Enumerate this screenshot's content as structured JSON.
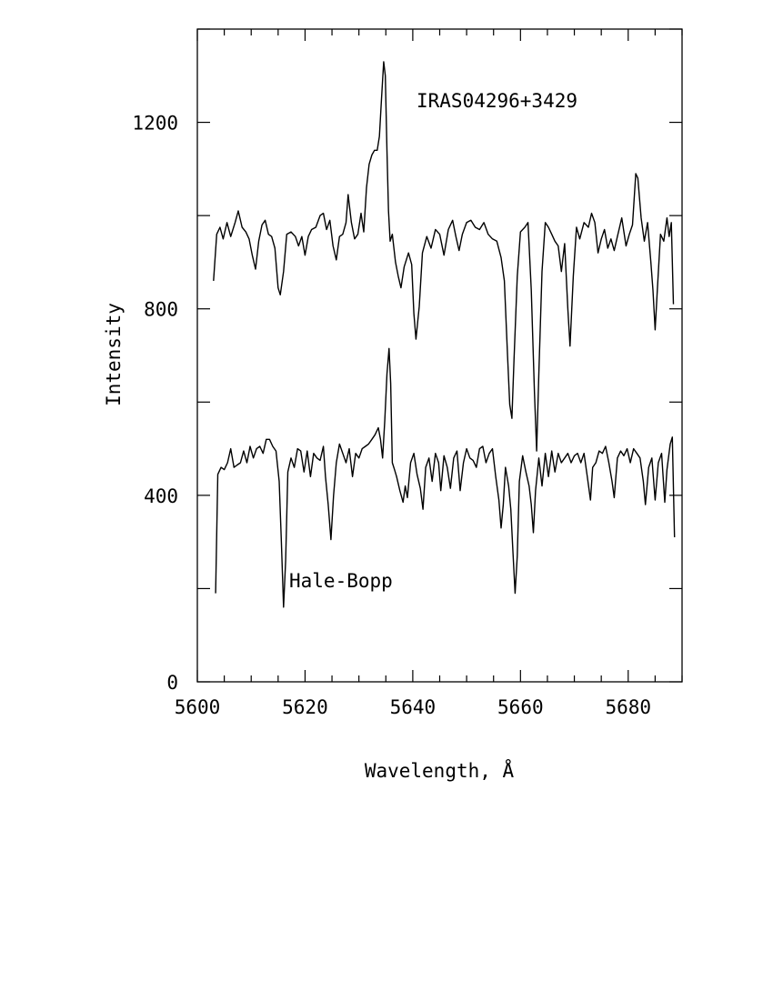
{
  "chart_data": {
    "type": "line",
    "title": "",
    "xlabel": "Wavelength, Å",
    "ylabel": "Intensity",
    "xlim": [
      5600,
      5690
    ],
    "ylim": [
      0,
      1400
    ],
    "x_ticks": [
      5600,
      5620,
      5640,
      5660,
      5680
    ],
    "y_ticks": [
      0,
      400,
      800,
      1200
    ],
    "x_minor_step": 5,
    "y_minor_step": 200,
    "grid": false,
    "legend": "none",
    "line_color": "#000000",
    "annotations": [
      "IRAS04296+3429",
      "Hale-Bopp"
    ],
    "series": [
      {
        "name": "IRAS04296+3429",
        "points": [
          [
            5603.0,
            860
          ],
          [
            5603.6,
            960
          ],
          [
            5604.2,
            975
          ],
          [
            5604.8,
            950
          ],
          [
            5605.5,
            985
          ],
          [
            5606.2,
            955
          ],
          [
            5607.0,
            985
          ],
          [
            5607.6,
            1010
          ],
          [
            5608.3,
            975
          ],
          [
            5609.0,
            965
          ],
          [
            5609.6,
            950
          ],
          [
            5610.2,
            915
          ],
          [
            5610.8,
            885
          ],
          [
            5611.4,
            945
          ],
          [
            5612.0,
            980
          ],
          [
            5612.6,
            990
          ],
          [
            5613.2,
            960
          ],
          [
            5613.8,
            955
          ],
          [
            5614.4,
            930
          ],
          [
            5615.0,
            845
          ],
          [
            5615.4,
            830
          ],
          [
            5616.0,
            880
          ],
          [
            5616.6,
            960
          ],
          [
            5617.4,
            965
          ],
          [
            5618.2,
            955
          ],
          [
            5618.8,
            935
          ],
          [
            5619.4,
            955
          ],
          [
            5620.0,
            915
          ],
          [
            5620.6,
            955
          ],
          [
            5621.2,
            970
          ],
          [
            5622.0,
            975
          ],
          [
            5622.8,
            1000
          ],
          [
            5623.4,
            1005
          ],
          [
            5624.0,
            970
          ],
          [
            5624.6,
            990
          ],
          [
            5625.2,
            935
          ],
          [
            5625.8,
            905
          ],
          [
            5626.4,
            955
          ],
          [
            5627.0,
            960
          ],
          [
            5627.6,
            985
          ],
          [
            5628.0,
            1045
          ],
          [
            5628.6,
            985
          ],
          [
            5629.2,
            950
          ],
          [
            5629.8,
            960
          ],
          [
            5630.4,
            1005
          ],
          [
            5630.9,
            965
          ],
          [
            5631.4,
            1060
          ],
          [
            5631.9,
            1110
          ],
          [
            5632.4,
            1130
          ],
          [
            5632.9,
            1140
          ],
          [
            5633.4,
            1140
          ],
          [
            5633.8,
            1170
          ],
          [
            5634.2,
            1250
          ],
          [
            5634.6,
            1330
          ],
          [
            5634.9,
            1300
          ],
          [
            5635.2,
            1140
          ],
          [
            5635.5,
            1010
          ],
          [
            5635.8,
            945
          ],
          [
            5636.2,
            960
          ],
          [
            5636.8,
            900
          ],
          [
            5637.3,
            870
          ],
          [
            5637.8,
            845
          ],
          [
            5638.4,
            890
          ],
          [
            5639.2,
            920
          ],
          [
            5639.8,
            895
          ],
          [
            5640.2,
            790
          ],
          [
            5640.6,
            735
          ],
          [
            5641.2,
            805
          ],
          [
            5641.8,
            920
          ],
          [
            5642.6,
            955
          ],
          [
            5643.4,
            930
          ],
          [
            5644.2,
            970
          ],
          [
            5645.0,
            960
          ],
          [
            5645.8,
            915
          ],
          [
            5646.6,
            970
          ],
          [
            5647.4,
            990
          ],
          [
            5648.0,
            955
          ],
          [
            5648.6,
            925
          ],
          [
            5649.2,
            960
          ],
          [
            5650.0,
            985
          ],
          [
            5650.8,
            990
          ],
          [
            5651.6,
            975
          ],
          [
            5652.4,
            970
          ],
          [
            5653.2,
            985
          ],
          [
            5654.0,
            960
          ],
          [
            5654.8,
            950
          ],
          [
            5655.6,
            945
          ],
          [
            5656.4,
            910
          ],
          [
            5657.0,
            860
          ],
          [
            5657.6,
            700
          ],
          [
            5658.0,
            595
          ],
          [
            5658.4,
            565
          ],
          [
            5658.8,
            690
          ],
          [
            5659.4,
            870
          ],
          [
            5660.0,
            965
          ],
          [
            5660.8,
            975
          ],
          [
            5661.4,
            985
          ],
          [
            5662.0,
            840
          ],
          [
            5662.6,
            620
          ],
          [
            5663.0,
            495
          ],
          [
            5663.4,
            660
          ],
          [
            5664.0,
            880
          ],
          [
            5664.6,
            985
          ],
          [
            5665.2,
            975
          ],
          [
            5665.8,
            960
          ],
          [
            5666.4,
            945
          ],
          [
            5667.0,
            935
          ],
          [
            5667.6,
            880
          ],
          [
            5668.2,
            940
          ],
          [
            5668.8,
            800
          ],
          [
            5669.2,
            720
          ],
          [
            5669.8,
            870
          ],
          [
            5670.4,
            975
          ],
          [
            5671.0,
            950
          ],
          [
            5671.8,
            985
          ],
          [
            5672.6,
            975
          ],
          [
            5673.2,
            1005
          ],
          [
            5673.8,
            985
          ],
          [
            5674.4,
            920
          ],
          [
            5675.0,
            950
          ],
          [
            5675.6,
            970
          ],
          [
            5676.2,
            930
          ],
          [
            5676.8,
            950
          ],
          [
            5677.4,
            925
          ],
          [
            5678.0,
            955
          ],
          [
            5678.8,
            995
          ],
          [
            5679.6,
            935
          ],
          [
            5680.2,
            960
          ],
          [
            5680.8,
            980
          ],
          [
            5681.4,
            1090
          ],
          [
            5681.8,
            1080
          ],
          [
            5682.4,
            995
          ],
          [
            5683.0,
            945
          ],
          [
            5683.6,
            985
          ],
          [
            5684.2,
            900
          ],
          [
            5684.6,
            840
          ],
          [
            5685.0,
            755
          ],
          [
            5685.4,
            840
          ],
          [
            5686.0,
            960
          ],
          [
            5686.6,
            945
          ],
          [
            5687.2,
            995
          ],
          [
            5687.6,
            955
          ],
          [
            5688.0,
            985
          ],
          [
            5688.4,
            810
          ]
        ]
      },
      {
        "name": "Hale-Bopp",
        "points": [
          [
            5603.4,
            190
          ],
          [
            5603.8,
            445
          ],
          [
            5604.4,
            460
          ],
          [
            5605.0,
            455
          ],
          [
            5605.6,
            470
          ],
          [
            5606.2,
            500
          ],
          [
            5606.8,
            460
          ],
          [
            5607.4,
            465
          ],
          [
            5608.0,
            470
          ],
          [
            5608.6,
            495
          ],
          [
            5609.2,
            470
          ],
          [
            5609.8,
            505
          ],
          [
            5610.4,
            480
          ],
          [
            5611.0,
            500
          ],
          [
            5611.6,
            505
          ],
          [
            5612.2,
            490
          ],
          [
            5612.8,
            520
          ],
          [
            5613.4,
            520
          ],
          [
            5614.0,
            505
          ],
          [
            5614.6,
            495
          ],
          [
            5615.2,
            430
          ],
          [
            5615.6,
            300
          ],
          [
            5616.0,
            160
          ],
          [
            5616.4,
            260
          ],
          [
            5616.8,
            450
          ],
          [
            5617.4,
            480
          ],
          [
            5618.0,
            460
          ],
          [
            5618.6,
            500
          ],
          [
            5619.2,
            495
          ],
          [
            5619.8,
            450
          ],
          [
            5620.4,
            495
          ],
          [
            5621.0,
            440
          ],
          [
            5621.6,
            490
          ],
          [
            5622.2,
            480
          ],
          [
            5622.8,
            475
          ],
          [
            5623.4,
            505
          ],
          [
            5623.8,
            440
          ],
          [
            5624.3,
            380
          ],
          [
            5624.8,
            305
          ],
          [
            5625.3,
            400
          ],
          [
            5625.8,
            470
          ],
          [
            5626.4,
            510
          ],
          [
            5627.0,
            490
          ],
          [
            5627.6,
            470
          ],
          [
            5628.2,
            500
          ],
          [
            5628.8,
            440
          ],
          [
            5629.4,
            490
          ],
          [
            5630.0,
            480
          ],
          [
            5630.6,
            500
          ],
          [
            5631.2,
            505
          ],
          [
            5631.8,
            510
          ],
          [
            5632.4,
            520
          ],
          [
            5633.0,
            530
          ],
          [
            5633.6,
            545
          ],
          [
            5634.0,
            520
          ],
          [
            5634.4,
            480
          ],
          [
            5634.8,
            560
          ],
          [
            5635.2,
            660
          ],
          [
            5635.6,
            715
          ],
          [
            5635.9,
            640
          ],
          [
            5636.2,
            470
          ],
          [
            5636.6,
            455
          ],
          [
            5637.0,
            440
          ],
          [
            5637.6,
            410
          ],
          [
            5638.2,
            385
          ],
          [
            5638.6,
            420
          ],
          [
            5639.0,
            395
          ],
          [
            5639.6,
            470
          ],
          [
            5640.2,
            490
          ],
          [
            5640.8,
            445
          ],
          [
            5641.4,
            415
          ],
          [
            5641.9,
            370
          ],
          [
            5642.4,
            460
          ],
          [
            5643.0,
            480
          ],
          [
            5643.6,
            430
          ],
          [
            5644.2,
            490
          ],
          [
            5644.8,
            470
          ],
          [
            5645.2,
            410
          ],
          [
            5645.8,
            485
          ],
          [
            5646.4,
            460
          ],
          [
            5647.0,
            415
          ],
          [
            5647.6,
            480
          ],
          [
            5648.2,
            495
          ],
          [
            5648.8,
            410
          ],
          [
            5649.4,
            470
          ],
          [
            5650.0,
            500
          ],
          [
            5650.6,
            480
          ],
          [
            5651.2,
            475
          ],
          [
            5651.8,
            460
          ],
          [
            5652.4,
            500
          ],
          [
            5653.0,
            505
          ],
          [
            5653.6,
            470
          ],
          [
            5654.2,
            490
          ],
          [
            5654.8,
            500
          ],
          [
            5655.4,
            440
          ],
          [
            5656.0,
            390
          ],
          [
            5656.4,
            330
          ],
          [
            5656.8,
            380
          ],
          [
            5657.2,
            460
          ],
          [
            5657.8,
            420
          ],
          [
            5658.2,
            370
          ],
          [
            5658.6,
            280
          ],
          [
            5659.0,
            190
          ],
          [
            5659.4,
            270
          ],
          [
            5659.8,
            430
          ],
          [
            5660.4,
            485
          ],
          [
            5661.0,
            450
          ],
          [
            5661.6,
            420
          ],
          [
            5662.0,
            380
          ],
          [
            5662.4,
            320
          ],
          [
            5662.8,
            410
          ],
          [
            5663.4,
            480
          ],
          [
            5664.0,
            420
          ],
          [
            5664.6,
            490
          ],
          [
            5665.2,
            440
          ],
          [
            5665.8,
            495
          ],
          [
            5666.4,
            450
          ],
          [
            5667.0,
            490
          ],
          [
            5667.6,
            470
          ],
          [
            5668.2,
            480
          ],
          [
            5668.8,
            490
          ],
          [
            5669.4,
            470
          ],
          [
            5670.0,
            485
          ],
          [
            5670.6,
            490
          ],
          [
            5671.2,
            470
          ],
          [
            5671.8,
            490
          ],
          [
            5672.4,
            440
          ],
          [
            5673.0,
            390
          ],
          [
            5673.4,
            460
          ],
          [
            5674.0,
            470
          ],
          [
            5674.6,
            495
          ],
          [
            5675.2,
            490
          ],
          [
            5675.8,
            505
          ],
          [
            5676.4,
            470
          ],
          [
            5677.0,
            430
          ],
          [
            5677.4,
            395
          ],
          [
            5678.0,
            480
          ],
          [
            5678.6,
            495
          ],
          [
            5679.2,
            485
          ],
          [
            5679.8,
            500
          ],
          [
            5680.4,
            470
          ],
          [
            5681.0,
            500
          ],
          [
            5681.6,
            490
          ],
          [
            5682.2,
            480
          ],
          [
            5682.8,
            430
          ],
          [
            5683.2,
            380
          ],
          [
            5683.8,
            460
          ],
          [
            5684.4,
            480
          ],
          [
            5685.0,
            390
          ],
          [
            5685.6,
            470
          ],
          [
            5686.2,
            490
          ],
          [
            5686.8,
            385
          ],
          [
            5687.2,
            455
          ],
          [
            5687.8,
            510
          ],
          [
            5688.2,
            525
          ],
          [
            5688.6,
            310
          ]
        ]
      }
    ]
  }
}
